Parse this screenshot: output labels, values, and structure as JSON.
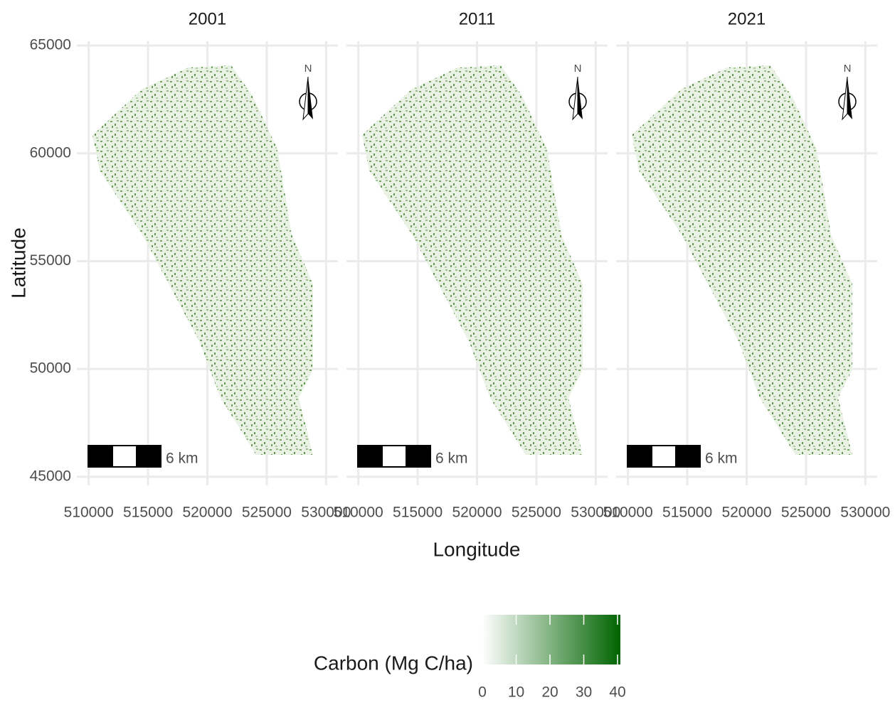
{
  "chart_data": [
    {
      "type": "map",
      "title": "2001",
      "xlim": [
        509000,
        531000
      ],
      "ylim": [
        44600,
        65200
      ],
      "xticks": [
        510000,
        515000,
        520000,
        525000,
        530000
      ],
      "yticks": [
        45000,
        50000,
        55000,
        60000,
        65000
      ],
      "scale_bar": "6 km",
      "north": "N",
      "grid": true
    },
    {
      "type": "map",
      "title": "2011",
      "xlim": [
        509000,
        531000
      ],
      "ylim": [
        44600,
        65200
      ],
      "xticks": [
        510000,
        515000,
        520000,
        525000,
        530000
      ],
      "yticks": [
        45000,
        50000,
        55000,
        60000,
        65000
      ],
      "scale_bar": "6 km",
      "north": "N",
      "grid": true
    },
    {
      "type": "map",
      "title": "2021",
      "xlim": [
        509000,
        531000
      ],
      "ylim": [
        44600,
        65200
      ],
      "xticks": [
        510000,
        515000,
        520000,
        525000,
        530000
      ],
      "yticks": [
        45000,
        50000,
        55000,
        60000,
        65000
      ],
      "scale_bar": "6 km",
      "north": "N",
      "grid": true
    }
  ],
  "x_label": "Longitude",
  "y_label": "Latitude",
  "legend": {
    "title": "Carbon (Mg C/ha)",
    "lim": [
      0,
      40
    ],
    "ticks": [
      0,
      10,
      20,
      30,
      40
    ],
    "colors": [
      "#ffffff",
      "#006400"
    ]
  }
}
